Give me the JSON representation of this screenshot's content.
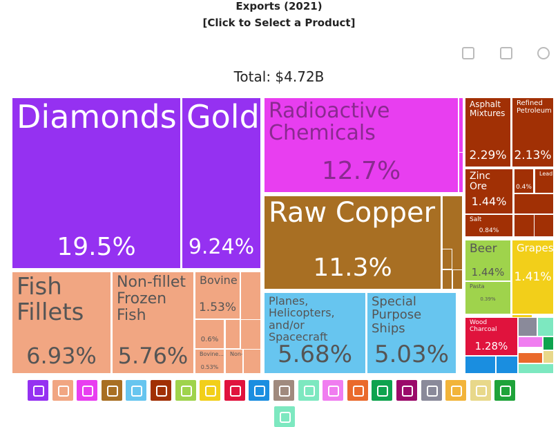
{
  "chart_data": {
    "type": "treemap",
    "title": "Exports (2021)",
    "subtitle": "[Click to Select a Product]",
    "total_label": "Total: $4.72B",
    "categories": [
      "Diamonds",
      "Gold",
      "Radioactive Chemicals",
      "Raw Copper",
      "Fish Fillets",
      "Non-fillet Frozen Fish",
      "Bovine",
      null,
      "Bovine...",
      "Non-...",
      "Planes, Helicopters, and/or Spacecraft",
      "Special Purpose Ships",
      "Asphalt Mixtures",
      "Refined Petroleum",
      "Zinc Ore",
      null,
      "Lead...",
      "Salt",
      "Beer",
      "Pasta",
      "Grapes",
      "Wood Charcoal"
    ],
    "values": [
      19.5,
      9.24,
      12.7,
      11.3,
      6.93,
      5.76,
      1.53,
      0.6,
      0.53,
      0.3,
      5.68,
      5.03,
      2.29,
      2.13,
      1.44,
      0.4,
      0.35,
      0.84,
      1.44,
      0.39,
      1.41,
      1.28
    ],
    "value_labels": [
      "19.5%",
      "9.24%",
      "12.7%",
      "11.3%",
      "6.93%",
      "5.76%",
      "1.53%",
      "0.6%",
      "0.53%",
      null,
      "5.68%",
      "5.03%",
      "2.29%",
      "2.13%",
      "1.44%",
      "0.4%",
      null,
      "0.84%",
      "1.44%",
      "0.39%",
      "1.41%",
      "1.28%"
    ],
    "colors": [
      "#9531f1",
      "#9531f1",
      "#e83ef0",
      "#a86f23",
      "#f1a682",
      "#f1a682",
      "#f1a682",
      "#f1a682",
      "#f1a682",
      "#f1a682",
      "#67c5ef",
      "#67c5ef",
      "#a13005",
      "#a13005",
      "#a13005",
      "#a13005",
      "#a13005",
      "#a13005",
      "#9fd34c",
      "#9fd34c",
      "#f2cf1a",
      "#e0133d"
    ]
  }
}
